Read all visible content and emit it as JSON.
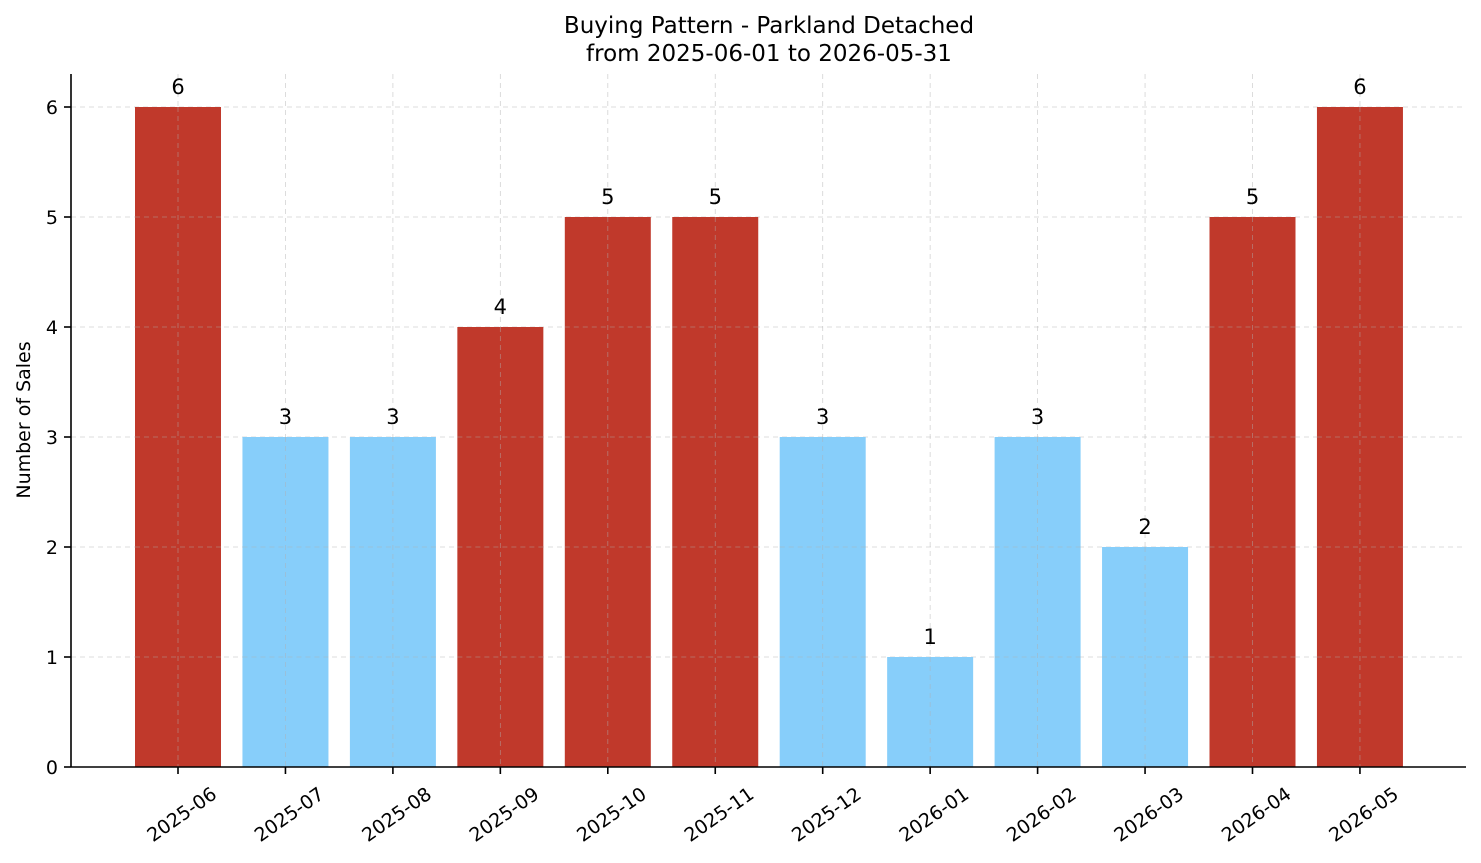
{
  "chart_data": {
    "type": "bar",
    "title": "Buying Pattern - Parkland Detached",
    "subtitle": "from 2025-06-01 to 2026-05-31",
    "xlabel": "",
    "ylabel": "Number of Sales",
    "categories": [
      "2025-06",
      "2025-07",
      "2025-08",
      "2025-09",
      "2025-10",
      "2025-11",
      "2025-12",
      "2026-01",
      "2026-02",
      "2026-03",
      "2026-04",
      "2026-05"
    ],
    "values": [
      6,
      3,
      3,
      4,
      5,
      5,
      3,
      1,
      3,
      2,
      5,
      6
    ],
    "data_labels": [
      "6",
      "3",
      "3",
      "4",
      "5",
      "5",
      "3",
      "1",
      "3",
      "2",
      "5",
      "6"
    ],
    "bar_colors": [
      "#c0392b",
      "#87cefa",
      "#87cefa",
      "#c0392b",
      "#c0392b",
      "#c0392b",
      "#87cefa",
      "#87cefa",
      "#87cefa",
      "#87cefa",
      "#c0392b",
      "#c0392b"
    ],
    "y_ticks": [
      0,
      1,
      2,
      3,
      4,
      5,
      6
    ],
    "y_tick_labels": [
      "0",
      "1",
      "2",
      "3",
      "4",
      "5",
      "6"
    ],
    "ylim": [
      0,
      6.3
    ],
    "grid": true,
    "legend": "none"
  }
}
